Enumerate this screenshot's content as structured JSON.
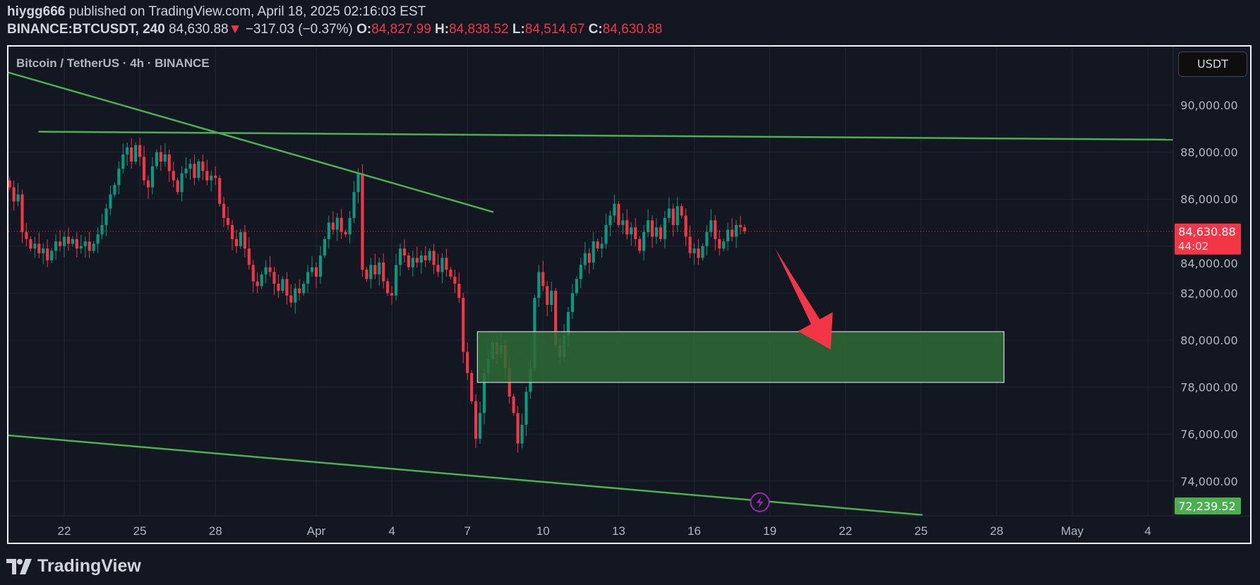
{
  "header": {
    "author": "hiygg666",
    "published": "published on TradingView.com, April 18, 2025 02:16:03 EST",
    "symbol": "BINANCE:BTCUSDT, 240",
    "last": "84,630.88",
    "change_icon": "triangle-down-icon",
    "change": "−317.03 (−0.37%)",
    "o_label": "O:",
    "o": "84,827.99",
    "h_label": "H:",
    "h": "84,838.52",
    "l_label": "L:",
    "l": "84,514.67",
    "c_label": "C:",
    "c": "84,630.88"
  },
  "legend": "Bitcoin / TetherUS · 4h · BINANCE",
  "currency_button": "USDT",
  "price_tag": {
    "price": "84,630.88",
    "countdown": "44:02"
  },
  "low_tag": "72,239.52",
  "footer": {
    "logo_text": "TradingView"
  },
  "colors": {
    "up": "#089981",
    "down": "#f23645",
    "trendline": "#4caf50",
    "zone": "#2e6b35",
    "arrow": "#f23645",
    "background": "#131722"
  },
  "chart_data": {
    "type": "candlestick",
    "interval": "4h",
    "start": "2025-03-19T20:00",
    "closes": [
      86500,
      85900,
      86200,
      84600,
      84300,
      83900,
      84100,
      83700,
      83900,
      83400,
      83800,
      84200,
      84000,
      84400,
      84100,
      84300,
      83900,
      84000,
      84200,
      83800,
      84100,
      84500,
      84900,
      85600,
      86200,
      86600,
      87300,
      87900,
      88200,
      87600,
      88300,
      87800,
      86800,
      86500,
      87400,
      88000,
      87600,
      87900,
      87200,
      86800,
      86300,
      87100,
      87300,
      87500,
      86900,
      87600,
      87200,
      86800,
      87000,
      86900,
      85800,
      85200,
      84900,
      84300,
      84000,
      84600,
      83900,
      83200,
      82500,
      82300,
      82800,
      83100,
      82900,
      82400,
      82100,
      82600,
      81900,
      81600,
      82200,
      82000,
      82400,
      82900,
      83100,
      82700,
      83600,
      84300,
      85000,
      84700,
      85200,
      84600,
      84500,
      85200,
      86300,
      87100,
      83000,
      82600,
      83200,
      82800,
      83300,
      82500,
      82000,
      81900,
      83200,
      83900,
      83600,
      83100,
      83500,
      83300,
      83600,
      83400,
      83800,
      83200,
      82900,
      83500,
      83000,
      82700,
      82400,
      81800,
      79500,
      78600,
      77400,
      75800,
      76900,
      78600,
      79200,
      79900,
      79400,
      79800,
      78800,
      77600,
      76900,
      75600,
      76400,
      77800,
      78800,
      81800,
      82900,
      82300,
      81500,
      82100,
      79800,
      79300,
      80200,
      81200,
      82000,
      82600,
      83200,
      83700,
      83300,
      84200,
      83900,
      84100,
      84900,
      85300,
      85800,
      84900,
      85100,
      84500,
      84800,
      84300,
      83800,
      84600,
      85100,
      84400,
      84800,
      84300,
      85200,
      85600,
      84900,
      85700,
      85300,
      84400,
      83700,
      83900,
      83500,
      84000,
      84600,
      85100,
      84300,
      83900,
      84200,
      84700,
      84400,
      84900,
      84800,
      84630.88
    ],
    "y_ticks": [
      "90,000.00",
      "88,000.00",
      "86,000.00",
      "84,000.00",
      "82,000.00",
      "80,000.00",
      "78,000.00",
      "76,000.00",
      "74,000.00"
    ],
    "y_tick_values": [
      90000,
      88000,
      86000,
      84000,
      82000,
      80000,
      78000,
      76000,
      74000
    ],
    "x_ticks": [
      {
        "label": "22",
        "date": "2025-03-22"
      },
      {
        "label": "25",
        "date": "2025-03-25"
      },
      {
        "label": "28",
        "date": "2025-03-28"
      },
      {
        "label": "Apr",
        "date": "2025-04-01"
      },
      {
        "label": "4",
        "date": "2025-04-04"
      },
      {
        "label": "7",
        "date": "2025-04-07"
      },
      {
        "label": "10",
        "date": "2025-04-10"
      },
      {
        "label": "13",
        "date": "2025-04-13"
      },
      {
        "label": "16",
        "date": "2025-04-16"
      },
      {
        "label": "19",
        "date": "2025-04-19"
      },
      {
        "label": "22",
        "date": "2025-04-22"
      },
      {
        "label": "25",
        "date": "2025-04-25"
      },
      {
        "label": "28",
        "date": "2025-04-28"
      },
      {
        "label": "May",
        "date": "2025-05-01"
      },
      {
        "label": "4",
        "date": "2025-05-04"
      }
    ],
    "ylim": [
      72600,
      92500
    ],
    "grid": true,
    "current_price": 84630.88,
    "drawings": {
      "trendlines": [
        {
          "from": [
            "2025-03-19T18:00",
            91400
          ],
          "to": [
            "2025-04-08T00:45",
            85450
          ]
        },
        {
          "from": [
            "2025-03-20T23:30",
            88870
          ],
          "to": [
            "2025-05-05T02:00",
            88530
          ]
        },
        {
          "from": [
            "2025-03-19T18:00",
            75950
          ],
          "to": [
            "2025-04-25T01:30",
            72560
          ]
        }
      ],
      "zone": {
        "from": "2025-04-07T09:30",
        "to": "2025-04-28T07:00",
        "top": 80360,
        "bottom": 78200
      },
      "arrow": {
        "from": [
          "2025-04-19T05:00",
          83900
        ],
        "to": [
          "2025-04-21T10:00",
          79600
        ]
      },
      "alert_icon": {
        "date": "2025-04-18T14:30",
        "price": 73100
      }
    }
  }
}
